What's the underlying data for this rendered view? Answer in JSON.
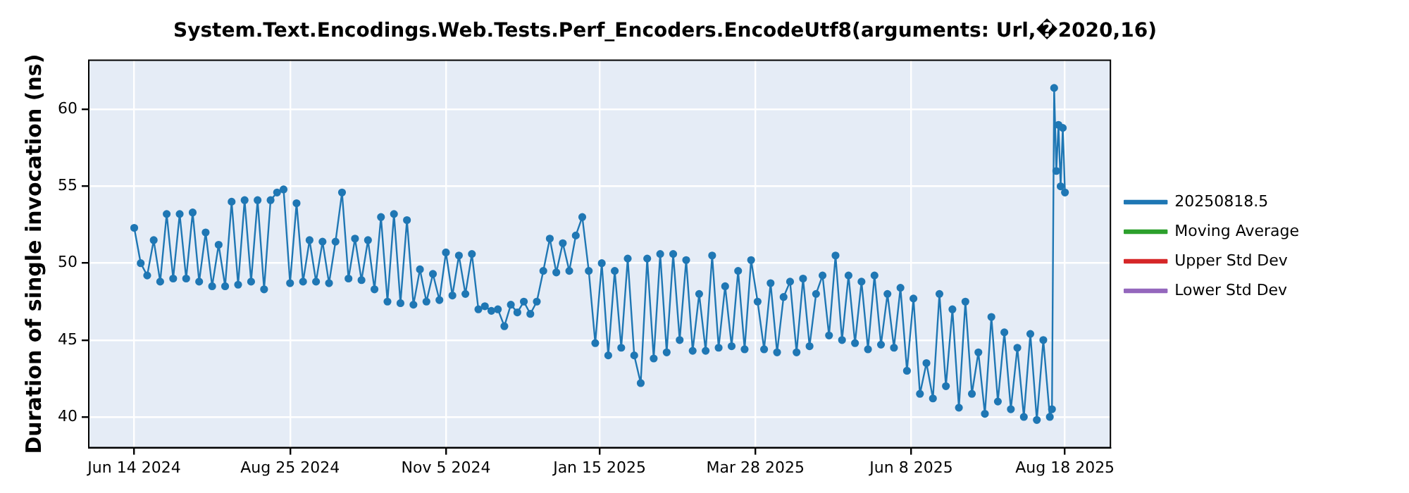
{
  "chart_data": {
    "type": "line",
    "title": "System.Text.Encodings.Web.Tests.Perf_Encoders.EncodeUtf8(arguments: Url,�2020,16)",
    "ylabel": "Duration of single invocation (ns)",
    "x": [
      "2024-06-14",
      "2024-06-17",
      "2024-06-20",
      "2024-06-23",
      "2024-06-26",
      "2024-06-29",
      "2024-07-02",
      "2024-07-05",
      "2024-07-08",
      "2024-07-11",
      "2024-07-14",
      "2024-07-17",
      "2024-07-20",
      "2024-07-23",
      "2024-07-26",
      "2024-07-29",
      "2024-08-01",
      "2024-08-04",
      "2024-08-07",
      "2024-08-10",
      "2024-08-13",
      "2024-08-16",
      "2024-08-19",
      "2024-08-22",
      "2024-08-25",
      "2024-08-28",
      "2024-08-31",
      "2024-09-03",
      "2024-09-06",
      "2024-09-09",
      "2024-09-12",
      "2024-09-15",
      "2024-09-18",
      "2024-09-21",
      "2024-09-24",
      "2024-09-27",
      "2024-09-30",
      "2024-10-03",
      "2024-10-06",
      "2024-10-09",
      "2024-10-12",
      "2024-10-15",
      "2024-10-18",
      "2024-10-21",
      "2024-10-24",
      "2024-10-27",
      "2024-10-30",
      "2024-11-02",
      "2024-11-05",
      "2024-11-08",
      "2024-11-11",
      "2024-11-14",
      "2024-11-17",
      "2024-11-20",
      "2024-11-23",
      "2024-11-26",
      "2024-11-29",
      "2024-12-02",
      "2024-12-05",
      "2024-12-08",
      "2024-12-11",
      "2024-12-14",
      "2024-12-17",
      "2024-12-20",
      "2024-12-23",
      "2024-12-26",
      "2024-12-29",
      "2025-01-01",
      "2025-01-04",
      "2025-01-07",
      "2025-01-10",
      "2025-01-13",
      "2025-01-16",
      "2025-01-19",
      "2025-01-22",
      "2025-01-25",
      "2025-01-28",
      "2025-01-31",
      "2025-02-03",
      "2025-02-06",
      "2025-02-09",
      "2025-02-12",
      "2025-02-15",
      "2025-02-18",
      "2025-02-21",
      "2025-02-24",
      "2025-02-27",
      "2025-03-02",
      "2025-03-05",
      "2025-03-08",
      "2025-03-11",
      "2025-03-14",
      "2025-03-17",
      "2025-03-20",
      "2025-03-23",
      "2025-03-26",
      "2025-03-29",
      "2025-04-01",
      "2025-04-04",
      "2025-04-07",
      "2025-04-10",
      "2025-04-13",
      "2025-04-16",
      "2025-04-19",
      "2025-04-22",
      "2025-04-25",
      "2025-04-28",
      "2025-05-01",
      "2025-05-04",
      "2025-05-07",
      "2025-05-10",
      "2025-05-13",
      "2025-05-16",
      "2025-05-19",
      "2025-05-22",
      "2025-05-25",
      "2025-05-28",
      "2025-05-31",
      "2025-06-03",
      "2025-06-06",
      "2025-06-09",
      "2025-06-12",
      "2025-06-15",
      "2025-06-18",
      "2025-06-21",
      "2025-06-24",
      "2025-06-27",
      "2025-06-30",
      "2025-07-03",
      "2025-07-06",
      "2025-07-09",
      "2025-07-12",
      "2025-07-15",
      "2025-07-18",
      "2025-07-21",
      "2025-07-24",
      "2025-07-27",
      "2025-07-30",
      "2025-08-02",
      "2025-08-05",
      "2025-08-08",
      "2025-08-11",
      "2025-08-12",
      "2025-08-13",
      "2025-08-14",
      "2025-08-15",
      "2025-08-16",
      "2025-08-17",
      "2025-08-18"
    ],
    "series": [
      {
        "name": "20250818.5",
        "color": "#1f77b4",
        "values": [
          52.3,
          50.0,
          49.2,
          51.5,
          48.8,
          53.2,
          49.0,
          53.2,
          49.0,
          53.3,
          48.8,
          52.0,
          48.5,
          51.2,
          48.5,
          54.0,
          48.6,
          54.1,
          48.8,
          54.1,
          48.3,
          54.1,
          54.6,
          54.8,
          48.7,
          53.9,
          48.8,
          51.5,
          48.8,
          51.4,
          48.7,
          51.4,
          54.6,
          49.0,
          51.6,
          48.9,
          51.5,
          48.3,
          53.0,
          47.5,
          53.2,
          47.4,
          52.8,
          47.3,
          49.6,
          47.5,
          49.3,
          47.6,
          50.7,
          47.9,
          50.5,
          48.0,
          50.6,
          47.0,
          47.2,
          46.9,
          47.0,
          45.9,
          47.3,
          46.8,
          47.5,
          46.7,
          47.5,
          49.5,
          51.6,
          49.4,
          51.3,
          49.5,
          51.8,
          53.0,
          49.5,
          44.8,
          50.0,
          44.0,
          49.5,
          44.5,
          50.3,
          44.0,
          42.2,
          50.3,
          43.8,
          50.6,
          44.2,
          50.6,
          45.0,
          50.2,
          44.3,
          48.0,
          44.3,
          50.5,
          44.5,
          48.5,
          44.6,
          49.5,
          44.4,
          50.2,
          47.5,
          44.4,
          48.7,
          44.2,
          47.8,
          48.8,
          44.2,
          49.0,
          44.6,
          48.0,
          49.2,
          45.3,
          50.5,
          45.0,
          49.2,
          44.8,
          48.8,
          44.4,
          49.2,
          44.7,
          48.0,
          44.5,
          48.4,
          43.0,
          47.7,
          41.5,
          43.5,
          41.2,
          48.0,
          42.0,
          47.0,
          40.6,
          47.5,
          41.5,
          44.2,
          40.2,
          46.5,
          41.0,
          45.5,
          40.5,
          44.5,
          40.0,
          45.4,
          39.8,
          45.0,
          40.0,
          40.5,
          61.4,
          56.0,
          59.0,
          55.0,
          58.8,
          54.6
        ]
      },
      {
        "name": "Moving Average",
        "color": "#2ca02c",
        "values": [
          null,
          null,
          null,
          null,
          null,
          null,
          null,
          null,
          null,
          null,
          null,
          null,
          null,
          null,
          null,
          null,
          null,
          null,
          null,
          null,
          null,
          null,
          null,
          null,
          null,
          null,
          null,
          null,
          null,
          null,
          null,
          null,
          null,
          null,
          null,
          null,
          null,
          null,
          null,
          null,
          null,
          null,
          null,
          null,
          null,
          null,
          null,
          null,
          null,
          null,
          null,
          null,
          null,
          null,
          null,
          null,
          null,
          null,
          null,
          null,
          null,
          null,
          null,
          null,
          null,
          null,
          null,
          null,
          null,
          null,
          null,
          null,
          null,
          null,
          null,
          null,
          null,
          null,
          null,
          null,
          null,
          null,
          null,
          null,
          null,
          null,
          null,
          null,
          null,
          null,
          null,
          null,
          null,
          null,
          null,
          null,
          null,
          null,
          null,
          null,
          null,
          null,
          null,
          null,
          null,
          null,
          null,
          null,
          null,
          null,
          null,
          null,
          null,
          null,
          null,
          null,
          null,
          null,
          null,
          null,
          null,
          null,
          null,
          null,
          null,
          null,
          null,
          null,
          null,
          null,
          null,
          null,
          null,
          null,
          null,
          null,
          null,
          null,
          null,
          null,
          null,
          null,
          null,
          null,
          null,
          null,
          null,
          null,
          null
        ]
      },
      {
        "name": "Upper Std Dev",
        "color": "#d62728",
        "values": [
          null,
          null,
          null,
          null,
          null,
          null,
          null,
          null,
          null,
          null,
          null,
          null,
          null,
          null,
          null,
          null,
          null,
          null,
          null,
          null,
          null,
          null,
          null,
          null,
          null,
          null,
          null,
          null,
          null,
          null,
          null,
          null,
          null,
          null,
          null,
          null,
          null,
          null,
          null,
          null,
          null,
          null,
          null,
          null,
          null,
          null,
          null,
          null,
          null,
          null,
          null,
          null,
          null,
          null,
          null,
          null,
          null,
          null,
          null,
          null,
          null,
          null,
          null,
          null,
          null,
          null,
          null,
          null,
          null,
          null,
          null,
          null,
          null,
          null,
          null,
          null,
          null,
          null,
          null,
          null,
          null,
          null,
          null,
          null,
          null,
          null,
          null,
          null,
          null,
          null,
          null,
          null,
          null,
          null,
          null,
          null,
          null,
          null,
          null,
          null,
          null,
          null,
          null,
          null,
          null,
          null,
          null,
          null,
          null,
          null,
          null,
          null,
          null,
          null,
          null,
          null,
          null,
          null,
          null,
          null,
          null,
          null,
          null,
          null,
          null,
          null,
          null,
          null,
          null,
          null,
          null,
          null,
          null,
          null,
          null,
          null,
          null,
          null,
          null,
          null,
          null,
          null,
          null,
          null,
          null,
          null,
          null,
          null,
          null
        ]
      },
      {
        "name": "Lower Std Dev",
        "color": "#9467bd",
        "values": [
          null,
          null,
          null,
          null,
          null,
          null,
          null,
          null,
          null,
          null,
          null,
          null,
          null,
          null,
          null,
          null,
          null,
          null,
          null,
          null,
          null,
          null,
          null,
          null,
          null,
          null,
          null,
          null,
          null,
          null,
          null,
          null,
          null,
          null,
          null,
          null,
          null,
          null,
          null,
          null,
          null,
          null,
          null,
          null,
          null,
          null,
          null,
          null,
          null,
          null,
          null,
          null,
          null,
          null,
          null,
          null,
          null,
          null,
          null,
          null,
          null,
          null,
          null,
          null,
          null,
          null,
          null,
          null,
          null,
          null,
          null,
          null,
          null,
          null,
          null,
          null,
          null,
          null,
          null,
          null,
          null,
          null,
          null,
          null,
          null,
          null,
          null,
          null,
          null,
          null,
          null,
          null,
          null,
          null,
          null,
          null,
          null,
          null,
          null,
          null,
          null,
          null,
          null,
          null,
          null,
          null,
          null,
          null,
          null,
          null,
          null,
          null,
          null,
          null,
          null,
          null,
          null,
          null,
          null,
          null,
          null,
          null,
          null,
          null,
          null,
          null,
          null,
          null,
          null,
          null,
          null,
          null,
          null,
          null,
          null,
          null,
          null,
          null,
          null,
          null,
          null,
          null,
          null,
          null,
          null,
          null,
          null,
          null,
          null
        ]
      }
    ],
    "xlim": [
      "2024-05-24",
      "2025-09-08"
    ],
    "xticks": [
      {
        "value": "2024-06-14",
        "label": "Jun 14 2024"
      },
      {
        "value": "2024-08-25",
        "label": "Aug 25 2024"
      },
      {
        "value": "2024-11-05",
        "label": "Nov 5 2024"
      },
      {
        "value": "2025-01-15",
        "label": "Jan 15 2025"
      },
      {
        "value": "2025-03-28",
        "label": "Mar 28 2025"
      },
      {
        "value": "2025-06-08",
        "label": "Jun 8 2025"
      },
      {
        "value": "2025-08-18",
        "label": "Aug 18 2025"
      }
    ],
    "ylim": [
      38,
      63.2
    ],
    "yticks": [
      40,
      45,
      50,
      55,
      60
    ],
    "grid": true,
    "legend": "right",
    "marker": "circle",
    "line_style": "solid"
  }
}
